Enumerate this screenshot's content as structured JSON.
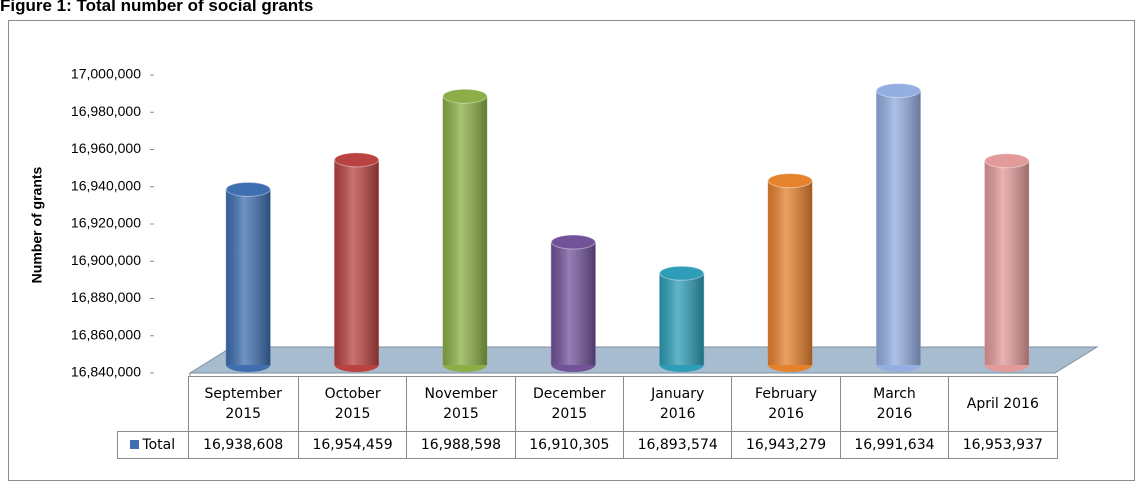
{
  "chart_data": {
    "type": "bar",
    "title": "Figure 1: Total number of social grants",
    "y_label": "Number of grants",
    "categories": [
      "September 2015",
      "October 2015",
      "November 2015",
      "December 2015",
      "January 2016",
      "February 2016",
      "March 2016",
      "April 2016"
    ],
    "series": [
      {
        "name": "Total",
        "colors": [
          "#3f6fb0",
          "#b84341",
          "#8bae47",
          "#72539a",
          "#2e9db7",
          "#e5822e",
          "#93aee0",
          "#e29a9a"
        ],
        "values": [
          16938608,
          16954459,
          16988598,
          16910305,
          16893574,
          16943279,
          16991634,
          16953937
        ],
        "value_labels": [
          "16,938,608",
          "16,954,459",
          "16,988,598",
          "16,910,305",
          "16,893,574",
          "16,943,279",
          "16,991,634",
          "16,953,937"
        ]
      }
    ],
    "ylim": [
      16840000,
      17000000
    ],
    "yticks": [
      {
        "value": 16840000,
        "label": "16,840,000"
      },
      {
        "value": 16860000,
        "label": "16,860,000"
      },
      {
        "value": 16880000,
        "label": "16,880,000"
      },
      {
        "value": 16900000,
        "label": "16,900,000"
      },
      {
        "value": 16920000,
        "label": "16,920,000"
      },
      {
        "value": 16940000,
        "label": "16,940,000"
      },
      {
        "value": 16960000,
        "label": "16,960,000"
      },
      {
        "value": 16980000,
        "label": "16,980,000"
      },
      {
        "value": 17000000,
        "label": "17,000,000"
      }
    ],
    "grid": false
  }
}
